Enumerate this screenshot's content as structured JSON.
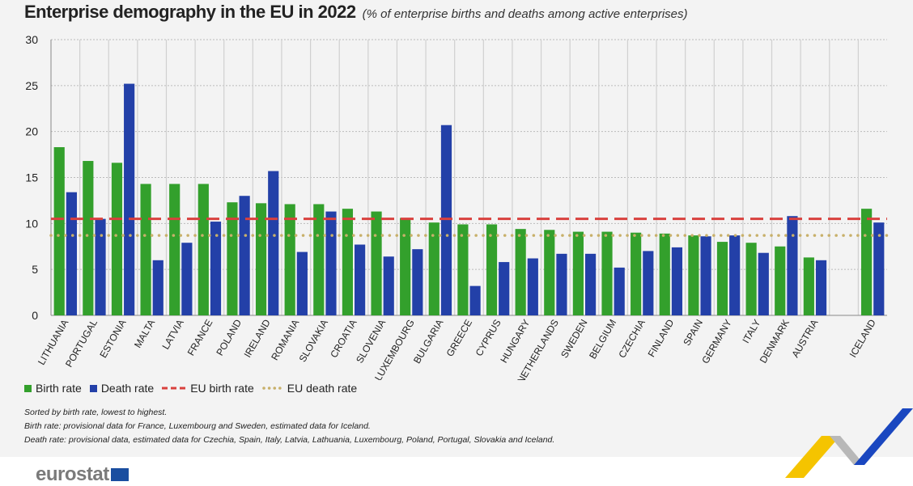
{
  "title": "Enterprise demography in the EU in 2022",
  "subtitle": "(% of enterprise births and deaths among active enterprises)",
  "chart_data": {
    "type": "bar",
    "title": "Enterprise demography in the EU in 2022",
    "subtitle": "(% of enterprise births and deaths among active enterprises)",
    "categories": [
      "LITHUANIA",
      "PORTUGAL",
      "ESTONIA",
      "MALTA",
      "LATVIA",
      "FRANCE",
      "POLAND",
      "IRELAND",
      "ROMANIA",
      "SLOVAKIA",
      "CROATIA",
      "SLOVENIA",
      "LUXEMBOURG",
      "BULGARIA",
      "GREECE",
      "CYPRUS",
      "HUNGARY",
      "NETHERLANDS",
      "SWEDEN",
      "BELGIUM",
      "CZECHIA",
      "FINLAND",
      "SPAIN",
      "GERMANY",
      "ITALY",
      "DENMARK",
      "AUSTRIA",
      "",
      "ICELAND"
    ],
    "series": [
      {
        "name": "Birth rate",
        "color": "#33a02c",
        "values": [
          18.3,
          16.8,
          16.6,
          14.3,
          14.3,
          14.3,
          12.3,
          12.2,
          12.1,
          12.1,
          11.6,
          11.3,
          10.6,
          10.1,
          9.9,
          9.9,
          9.4,
          9.3,
          9.1,
          9.1,
          9.0,
          8.9,
          8.7,
          8.0,
          7.9,
          7.5,
          6.3,
          null,
          11.6
        ]
      },
      {
        "name": "Death rate",
        "color": "#2340a8",
        "values": [
          13.4,
          10.5,
          25.2,
          6.0,
          7.9,
          10.2,
          13.0,
          15.7,
          6.9,
          11.3,
          7.7,
          6.4,
          7.2,
          20.7,
          3.2,
          5.8,
          6.2,
          6.7,
          6.7,
          5.2,
          7.0,
          7.4,
          8.6,
          8.7,
          6.8,
          10.8,
          6.0,
          null,
          10.1
        ]
      }
    ],
    "reference_lines": [
      {
        "name": "EU birth rate",
        "value": 10.5,
        "color": "#d9413e",
        "style": "dashed"
      },
      {
        "name": "EU death rate",
        "value": 8.7,
        "color": "#c8b06a",
        "style": "dotted"
      }
    ],
    "ylim": [
      0,
      30
    ],
    "yticks": [
      0,
      5,
      10,
      15,
      20,
      25,
      30
    ],
    "grid": true,
    "legend": "bottom-left"
  },
  "notes": [
    "Sorted by birth rate, lowest to highest.",
    "Birth rate: provisional data for France, Luxembourg and Sweden, estimated data for Iceland.",
    "Death rate: provisional data, estimated data for Czechia, Spain, Italy, Latvia, Lathuania, Luxembourg, Poland, Portugal, Slovakia and Iceland."
  ],
  "logo": "eurostat"
}
